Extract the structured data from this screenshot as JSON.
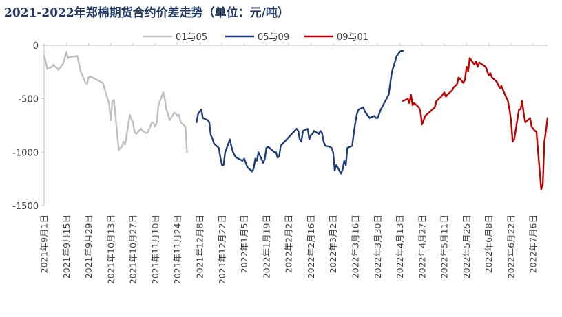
{
  "chart_data": {
    "type": "line",
    "title": "2021-2022年郑棉期货合约价差走势（单位：元/吨）",
    "xlabel": "",
    "ylabel": "",
    "ylim": [
      -1500,
      0
    ],
    "yticks": [
      0,
      -500,
      -1000,
      -1500
    ],
    "grid": false,
    "legend_position": "top",
    "xlim": [
      "2021-09-01",
      "2022-07-15"
    ],
    "x_tick_labels": [
      {
        "date": "2021-09-01",
        "label": "2021年9月1日"
      },
      {
        "date": "2021-09-15",
        "label": "2021年9月15日"
      },
      {
        "date": "2021-09-29",
        "label": "2021年9月29日"
      },
      {
        "date": "2021-10-13",
        "label": "2021年10月13日"
      },
      {
        "date": "2021-10-27",
        "label": "2021年10月27日"
      },
      {
        "date": "2021-11-10",
        "label": "2021年11月10日"
      },
      {
        "date": "2021-11-24",
        "label": "2021年11月24日"
      },
      {
        "date": "2021-12-08",
        "label": "2021年12月8日"
      },
      {
        "date": "2021-12-22",
        "label": "2021年12月22日"
      },
      {
        "date": "2022-01-05",
        "label": "2022年1月5日"
      },
      {
        "date": "2022-01-19",
        "label": "2022年1月19日"
      },
      {
        "date": "2022-02-02",
        "label": "2022年2月2日"
      },
      {
        "date": "2022-02-16",
        "label": "2022年2月16日"
      },
      {
        "date": "2022-03-02",
        "label": "2022年3月2日"
      },
      {
        "date": "2022-03-16",
        "label": "2022年3月16日"
      },
      {
        "date": "2022-03-30",
        "label": "2022年3月30日"
      },
      {
        "date": "2022-04-13",
        "label": "2022年4月13日"
      },
      {
        "date": "2022-04-27",
        "label": "2022年4月27日"
      },
      {
        "date": "2022-05-11",
        "label": "2022年5月11日"
      },
      {
        "date": "2022-05-25",
        "label": "2022年5月25日"
      },
      {
        "date": "2022-06-08",
        "label": "2022年6月8日"
      },
      {
        "date": "2022-06-22",
        "label": "2022年6月22日"
      },
      {
        "date": "2022-07-06",
        "label": "2022年7月6日"
      }
    ],
    "series": [
      {
        "name": "01与05",
        "color": "#bfbfbf",
        "x": [
          "2021-09-01",
          "2021-09-02",
          "2021-09-03",
          "2021-09-06",
          "2021-09-07",
          "2021-09-08",
          "2021-09-09",
          "2021-09-10",
          "2021-09-13",
          "2021-09-14",
          "2021-09-15",
          "2021-09-16",
          "2021-09-17",
          "2021-09-22",
          "2021-09-23",
          "2021-09-24",
          "2021-09-27",
          "2021-09-28",
          "2021-09-29",
          "2021-09-30",
          "2021-10-08",
          "2021-10-11",
          "2021-10-12",
          "2021-10-13",
          "2021-10-14",
          "2021-10-15",
          "2021-10-18",
          "2021-10-19",
          "2021-10-20",
          "2021-10-21",
          "2021-10-22",
          "2021-10-25",
          "2021-10-26",
          "2021-10-27",
          "2021-10-28",
          "2021-10-29",
          "2021-11-01",
          "2021-11-02",
          "2021-11-03",
          "2021-11-04",
          "2021-11-05",
          "2021-11-08",
          "2021-11-09",
          "2021-11-10",
          "2021-11-11",
          "2021-11-12",
          "2021-11-15",
          "2021-11-16",
          "2021-11-17",
          "2021-11-18",
          "2021-11-19",
          "2021-11-22",
          "2021-11-23",
          "2021-11-24",
          "2021-11-25",
          "2021-11-26",
          "2021-11-29",
          "2021-11-30"
        ],
        "values": [
          -100,
          -150,
          -220,
          -200,
          -180,
          -200,
          -210,
          -230,
          -170,
          -120,
          -60,
          -120,
          -110,
          -100,
          -170,
          -240,
          -350,
          -360,
          -300,
          -290,
          -350,
          -500,
          -550,
          -700,
          -520,
          -510,
          -980,
          -960,
          -950,
          -900,
          -930,
          -650,
          -690,
          -720,
          -810,
          -830,
          -780,
          -800,
          -810,
          -820,
          -820,
          -720,
          -730,
          -760,
          -720,
          -560,
          -440,
          -500,
          -600,
          -640,
          -700,
          -630,
          -640,
          -660,
          -650,
          -720,
          -760,
          -1000
        ]
      },
      {
        "name": "05与09",
        "color": "#1f3d7a",
        "x": [
          "2021-12-06",
          "2021-12-07",
          "2021-12-08",
          "2021-12-09",
          "2021-12-10",
          "2021-12-13",
          "2021-12-14",
          "2021-12-15",
          "2021-12-16",
          "2021-12-17",
          "2021-12-20",
          "2021-12-21",
          "2021-12-22",
          "2021-12-23",
          "2021-12-24",
          "2021-12-27",
          "2021-12-28",
          "2021-12-29",
          "2021-12-30",
          "2021-12-31",
          "2022-01-04",
          "2022-01-05",
          "2022-01-06",
          "2022-01-07",
          "2022-01-10",
          "2022-01-11",
          "2022-01-12",
          "2022-01-13",
          "2022-01-14",
          "2022-01-17",
          "2022-01-18",
          "2022-01-19",
          "2022-01-20",
          "2022-01-21",
          "2022-01-24",
          "2022-01-25",
          "2022-01-26",
          "2022-01-27",
          "2022-01-28",
          "2022-02-07",
          "2022-02-08",
          "2022-02-09",
          "2022-02-10",
          "2022-02-11",
          "2022-02-14",
          "2022-02-15",
          "2022-02-16",
          "2022-02-17",
          "2022-02-18",
          "2022-02-21",
          "2022-02-22",
          "2022-02-23",
          "2022-02-24",
          "2022-02-25",
          "2022-02-28",
          "2022-03-01",
          "2022-03-02",
          "2022-03-03",
          "2022-03-04",
          "2022-03-07",
          "2022-03-08",
          "2022-03-09",
          "2022-03-10",
          "2022-03-11",
          "2022-03-14",
          "2022-03-15",
          "2022-03-16",
          "2022-03-17",
          "2022-03-18",
          "2022-03-21",
          "2022-03-22",
          "2022-03-23",
          "2022-03-24",
          "2022-03-25",
          "2022-03-28",
          "2022-03-29",
          "2022-03-30",
          "2022-03-31",
          "2022-04-01",
          "2022-04-06",
          "2022-04-07",
          "2022-04-08",
          "2022-04-11",
          "2022-04-12",
          "2022-04-13",
          "2022-04-14",
          "2022-04-15"
        ],
        "values": [
          -720,
          -640,
          -620,
          -600,
          -680,
          -700,
          -720,
          -840,
          -870,
          -920,
          -960,
          -1050,
          -1120,
          -1120,
          -1000,
          -880,
          -950,
          -1000,
          -1030,
          -1050,
          -1080,
          -1060,
          -1100,
          -1140,
          -1180,
          -1150,
          -1060,
          -1080,
          -1000,
          -1100,
          -1060,
          -960,
          -950,
          -960,
          -1000,
          -1000,
          -1050,
          -1040,
          -940,
          -780,
          -800,
          -880,
          -900,
          -800,
          -780,
          -880,
          -840,
          -830,
          -800,
          -830,
          -800,
          -820,
          -900,
          -940,
          -950,
          -960,
          -1000,
          -1170,
          -1120,
          -1200,
          -1160,
          -1080,
          -1120,
          -960,
          -940,
          -820,
          -720,
          -640,
          -600,
          -580,
          -620,
          -640,
          -660,
          -680,
          -660,
          -680,
          -680,
          -640,
          -600,
          -460,
          -350,
          -250,
          -100,
          -80,
          -60,
          -50,
          -50
        ]
      },
      {
        "name": "09与01",
        "color": "#c00000",
        "x": [
          "2022-04-15",
          "2022-04-18",
          "2022-04-19",
          "2022-04-20",
          "2022-04-21",
          "2022-04-22",
          "2022-04-25",
          "2022-04-26",
          "2022-04-27",
          "2022-04-28",
          "2022-04-29",
          "2022-05-05",
          "2022-05-06",
          "2022-05-09",
          "2022-05-10",
          "2022-05-11",
          "2022-05-12",
          "2022-05-13",
          "2022-05-16",
          "2022-05-17",
          "2022-05-18",
          "2022-05-19",
          "2022-05-20",
          "2022-05-23",
          "2022-05-24",
          "2022-05-25",
          "2022-05-26",
          "2022-05-27",
          "2022-05-30",
          "2022-05-31",
          "2022-06-01",
          "2022-06-02",
          "2022-06-06",
          "2022-06-07",
          "2022-06-08",
          "2022-06-09",
          "2022-06-10",
          "2022-06-13",
          "2022-06-14",
          "2022-06-15",
          "2022-06-16",
          "2022-06-17",
          "2022-06-20",
          "2022-06-21",
          "2022-06-22",
          "2022-06-23",
          "2022-06-24",
          "2022-06-27",
          "2022-06-28",
          "2022-06-29",
          "2022-06-30",
          "2022-07-01",
          "2022-07-04",
          "2022-07-05",
          "2022-07-06",
          "2022-07-07",
          "2022-07-08",
          "2022-07-11",
          "2022-07-12",
          "2022-07-13",
          "2022-07-14",
          "2022-07-15"
        ],
        "values": [
          -520,
          -500,
          -540,
          -460,
          -560,
          -540,
          -580,
          -620,
          -740,
          -700,
          -660,
          -580,
          -520,
          -480,
          -460,
          -440,
          -480,
          -460,
          -420,
          -390,
          -380,
          -360,
          -300,
          -350,
          -320,
          -200,
          -240,
          -120,
          -180,
          -150,
          -200,
          -160,
          -200,
          -240,
          -280,
          -260,
          -300,
          -340,
          -370,
          -400,
          -380,
          -420,
          -520,
          -600,
          -700,
          -900,
          -880,
          -600,
          -600,
          -520,
          -640,
          -720,
          -680,
          -760,
          -780,
          -800,
          -810,
          -1350,
          -1300,
          -900,
          -800,
          -680
        ]
      }
    ]
  }
}
